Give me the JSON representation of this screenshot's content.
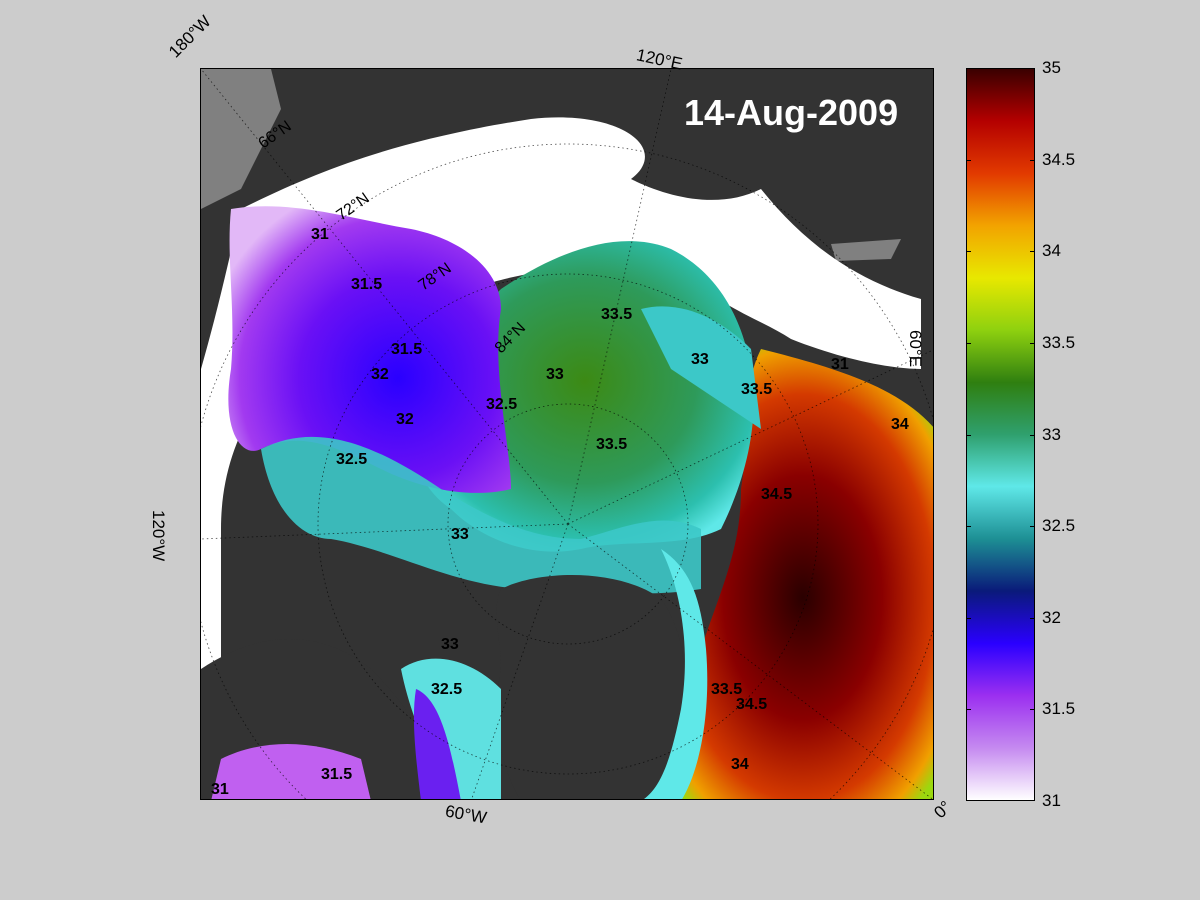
{
  "title": "14-Aug-2009",
  "edge_labels": {
    "top_left": "180°W",
    "top_mid": "120°E",
    "right_mid": "60°E",
    "left_mid": "120°W",
    "bottom_mid": "60°W",
    "bottom_right": "0°"
  },
  "latitude_labels": [
    "66°N",
    "72°N",
    "78°N",
    "84°N"
  ],
  "contour_labels": [
    "31",
    "31.5",
    "32",
    "32.5",
    "33",
    "33.5",
    "34",
    "34.5"
  ],
  "colorbar": {
    "min": 31,
    "max": 35,
    "ticks": [
      "35",
      "34.5",
      "34",
      "33.5",
      "33",
      "32.5",
      "32",
      "31.5",
      "31"
    ],
    "colormap": [
      "#ffffff",
      "#c58af0",
      "#9b2ff0",
      "#2a00ff",
      "#0a1a7a",
      "#1d8f94",
      "#5fe8e8",
      "#2fa06e",
      "#2f7f10",
      "#8fd10f",
      "#e8e800",
      "#f2a300",
      "#e23a00",
      "#b40000",
      "#3a0000"
    ]
  },
  "colors": {
    "land": "#333333",
    "ice": "#ffffff",
    "nodata": "#808080",
    "background": "#cccccc"
  }
}
